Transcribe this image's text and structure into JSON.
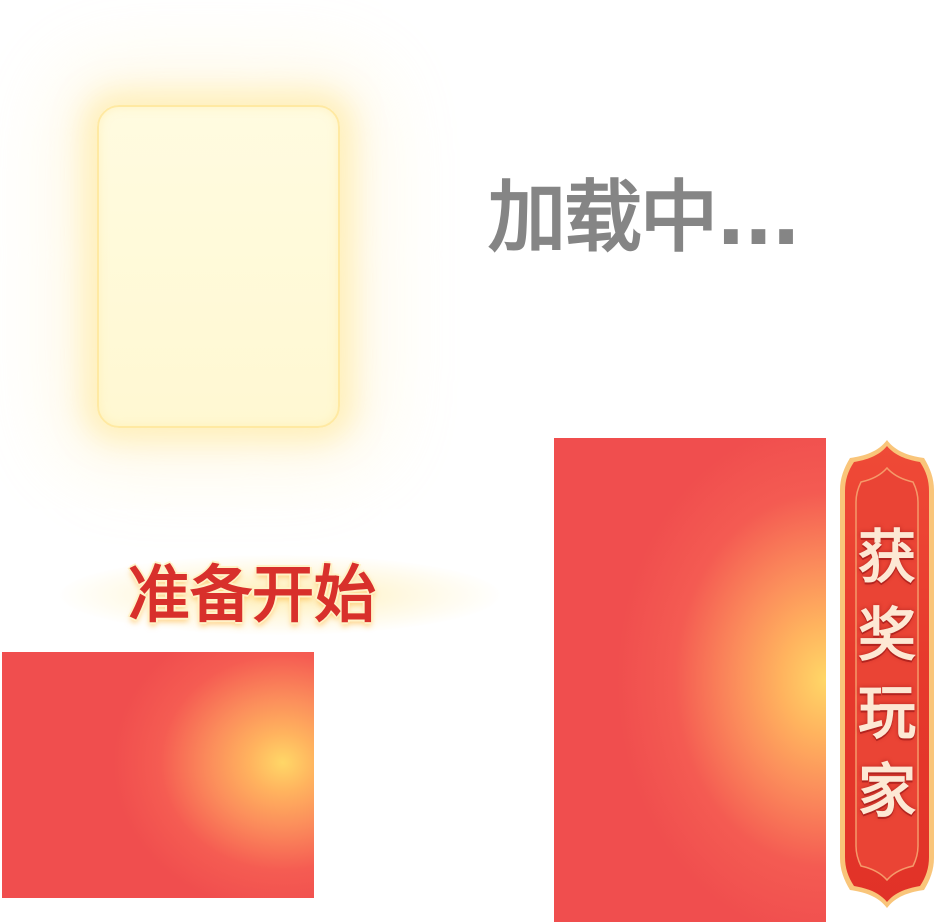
{
  "loading": {
    "text": "加载中..."
  },
  "ready": {
    "text": "准备开始"
  },
  "winners_banner": {
    "chars": [
      "获",
      "奖",
      "玩",
      "家"
    ]
  },
  "colors": {
    "loading_gray": "#858585",
    "ready_red": "#d8302b",
    "panel_red": "#f04e4e",
    "panel_glow": "#ffd767",
    "card_cream": "#fffbe0",
    "banner_red": "#e53a2c",
    "banner_border": "#f9c57a"
  }
}
